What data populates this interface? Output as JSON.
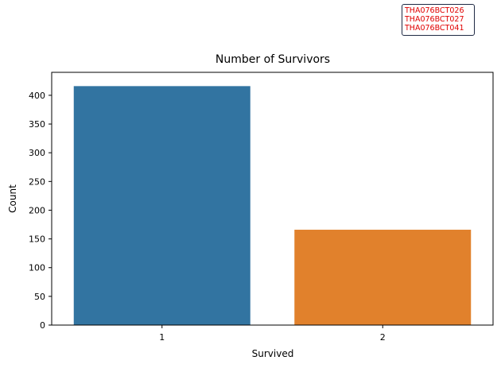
{
  "chart_data": {
    "type": "bar",
    "title": "Number of Survivors",
    "xlabel": "Survived",
    "ylabel": "Count",
    "categories": [
      "1",
      "2"
    ],
    "values": [
      416,
      166
    ],
    "ylim": [
      0,
      440
    ],
    "yticks": [
      "0",
      "50",
      "100",
      "150",
      "200",
      "250",
      "300",
      "350",
      "400"
    ],
    "colors": [
      "#3274a1",
      "#e1812c"
    ],
    "grid": false
  },
  "annotation": {
    "lines": [
      "THA076BCT026",
      "THA076BCT027",
      "THA076BCT041"
    ],
    "color": "#e00000"
  }
}
